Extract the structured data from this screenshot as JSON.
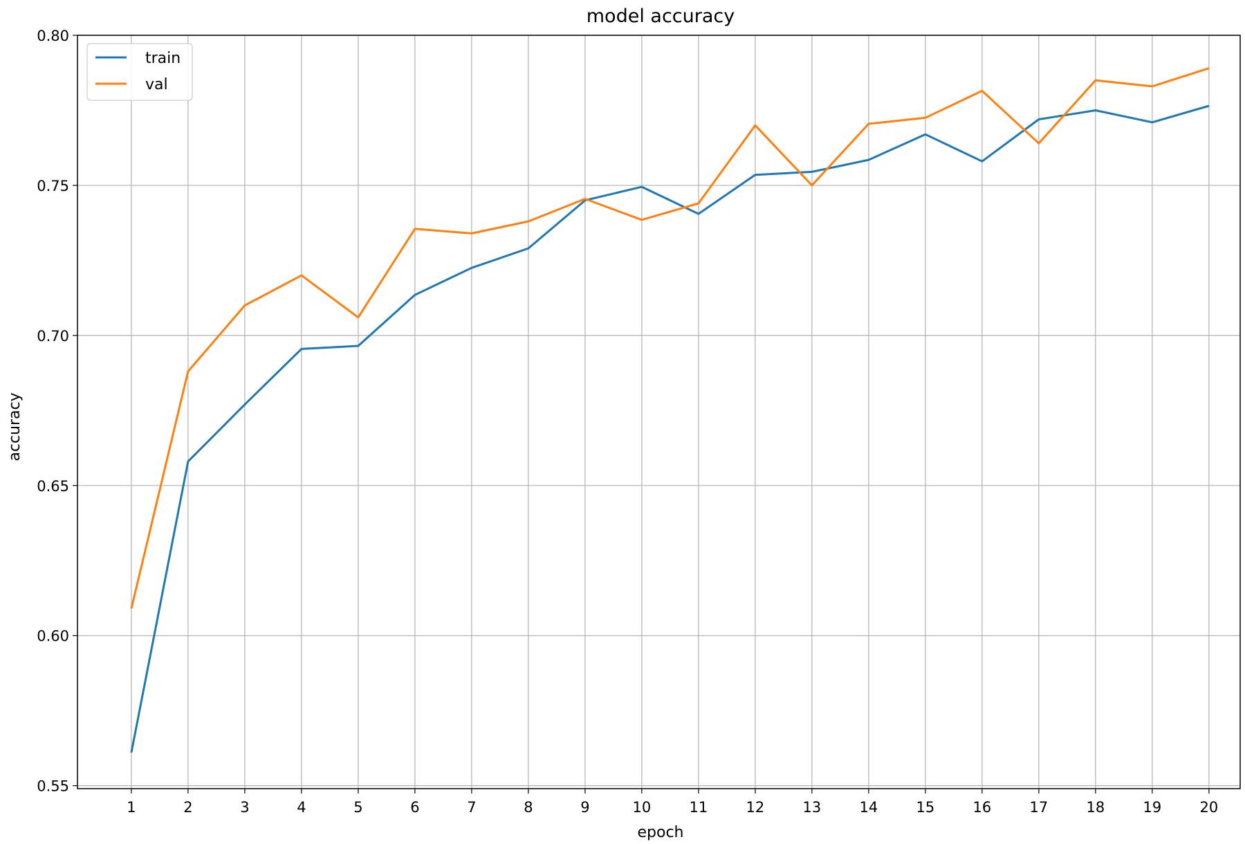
{
  "chart_data": {
    "type": "line",
    "title": "model accuracy",
    "xlabel": "epoch",
    "ylabel": "accuracy",
    "x": [
      1,
      2,
      3,
      4,
      5,
      6,
      7,
      8,
      9,
      10,
      11,
      12,
      13,
      14,
      15,
      16,
      17,
      18,
      19,
      20
    ],
    "xlim": [
      0.05,
      20.55
    ],
    "ylim": [
      0.549,
      0.8
    ],
    "xticks": [
      1,
      2,
      3,
      4,
      5,
      6,
      7,
      8,
      9,
      10,
      11,
      12,
      13,
      14,
      15,
      16,
      17,
      18,
      19,
      20
    ],
    "yticks": [
      0.55,
      0.6,
      0.65,
      0.7,
      0.75,
      0.8
    ],
    "ytick_labels": [
      "0.55",
      "0.60",
      "0.65",
      "0.70",
      "0.75",
      "0.80"
    ],
    "grid": true,
    "legend": "top-left",
    "series": [
      {
        "name": "train",
        "color": "#1f77b4",
        "values": [
          0.561,
          0.658,
          0.677,
          0.6955,
          0.6965,
          0.7135,
          0.7225,
          0.729,
          0.745,
          0.7495,
          0.7405,
          0.7535,
          0.7545,
          0.7585,
          0.767,
          0.758,
          0.772,
          0.775,
          0.771,
          0.7765
        ]
      },
      {
        "name": "val",
        "color": "#ff7f0e",
        "values": [
          0.609,
          0.688,
          0.71,
          0.72,
          0.706,
          0.7355,
          0.734,
          0.738,
          0.7455,
          0.7385,
          0.744,
          0.77,
          0.75,
          0.7705,
          0.7725,
          0.7815,
          0.764,
          0.785,
          0.783,
          0.789
        ]
      }
    ]
  }
}
